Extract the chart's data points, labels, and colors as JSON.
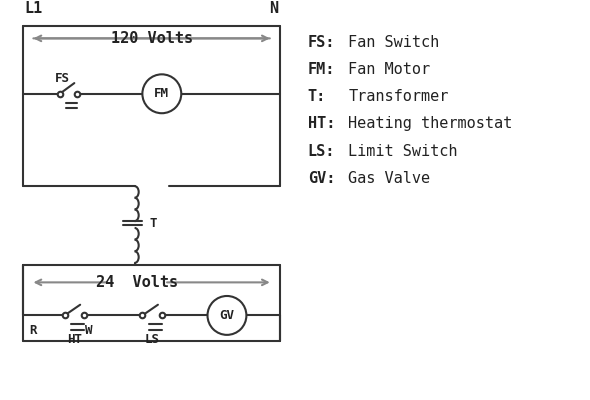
{
  "bg_color": "#ffffff",
  "line_color": "#333333",
  "arrow_color": "#888888",
  "text_color": "#222222",
  "legend": [
    [
      "FS:",
      "Fan Switch"
    ],
    [
      "FM:",
      "Fan Motor"
    ],
    [
      "T:",
      "Transformer"
    ],
    [
      "HT:",
      "Heating thermostat"
    ],
    [
      "LS:",
      "Limit Switch"
    ],
    [
      "GV:",
      "Gas Valve"
    ]
  ],
  "volts120_label": "120 Volts",
  "volts24_label": "24  Volts",
  "L1_label": "L1",
  "N_label": "N"
}
